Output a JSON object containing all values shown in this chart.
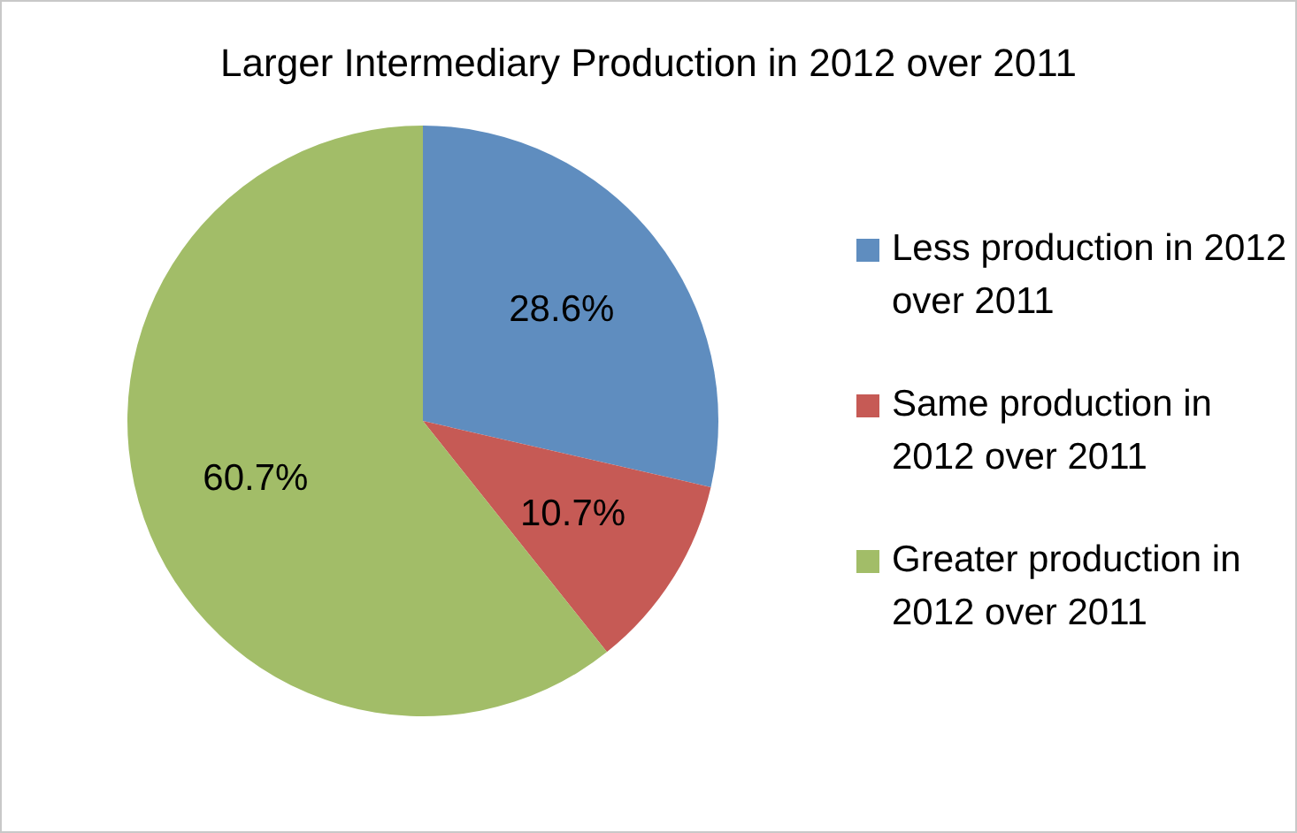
{
  "chart_data": {
    "type": "pie",
    "title": "Larger Intermediary Production in 2012 over 2011",
    "categories": [
      "Less production in 2012 over 2011",
      "Same production in 2012 over 2011",
      "Greater production in 2012 over 2011"
    ],
    "values": [
      28.6,
      10.7,
      60.7
    ],
    "colors": [
      "#5f8dbf",
      "#c65a55",
      "#a2bd68"
    ],
    "value_labels": [
      "28.6%",
      "10.7%",
      "60.7%"
    ],
    "legend": "right"
  }
}
